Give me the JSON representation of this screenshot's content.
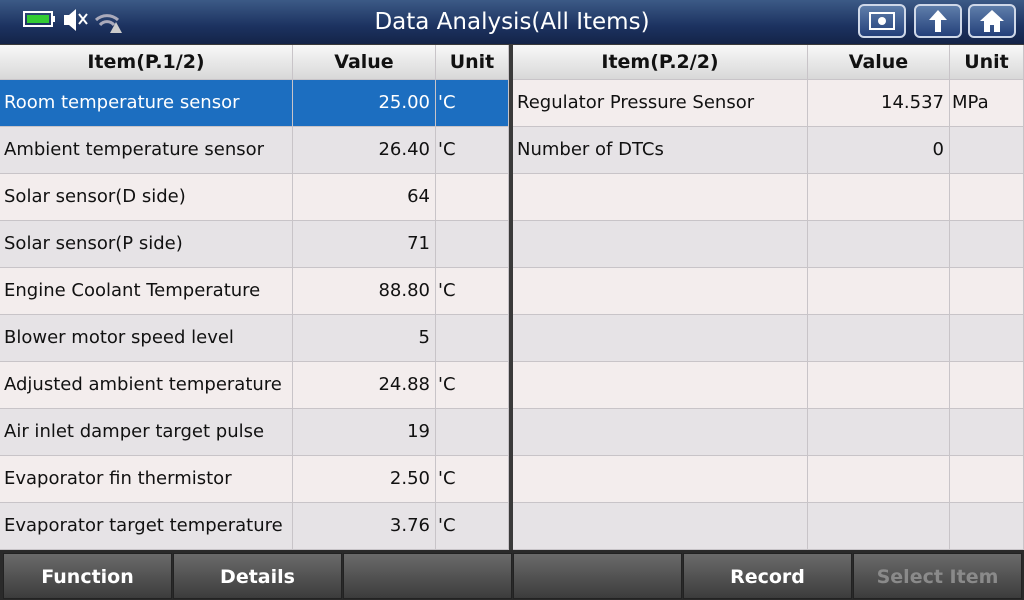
{
  "header": {
    "title": "Data Analysis(All Items)"
  },
  "left_table": {
    "headers": [
      "Item(P.1/2)",
      "Value",
      "Unit"
    ],
    "rows": [
      {
        "item": "Room temperature sensor",
        "value": "25.00",
        "unit": "'C"
      },
      {
        "item": "Ambient temperature sensor",
        "value": "26.40",
        "unit": "'C"
      },
      {
        "item": "Solar sensor(D side)",
        "value": "64"
      },
      {
        "item": "Solar sensor(P side)",
        "value": "71"
      },
      {
        "item": "Engine Coolant Temperature",
        "value": "88.80",
        "unit": "'C"
      },
      {
        "item": "Blower motor speed level",
        "value": "5"
      },
      {
        "item": "Adjusted ambient temperature",
        "value": "24.88",
        "unit": "'C"
      },
      {
        "item": "Air inlet damper target pulse",
        "value": "19"
      },
      {
        "item": "Evaporator fin thermistor",
        "value": "2.50",
        "unit": "'C"
      },
      {
        "item": "Evaporator target temperature",
        "value": "3.76",
        "unit": "'C"
      }
    ]
  },
  "right_table": {
    "headers": [
      "Item(P.2/2)",
      "Value",
      "Unit"
    ],
    "rows": [
      {
        "item": "Regulator Pressure Sensor",
        "value": "14.537",
        "unit": "MPa"
      },
      {
        "item": "Number of DTCs",
        "value": "0"
      }
    ]
  },
  "footer": {
    "buttons": [
      "Function",
      "Details",
      "Record",
      "Select Item"
    ]
  }
}
